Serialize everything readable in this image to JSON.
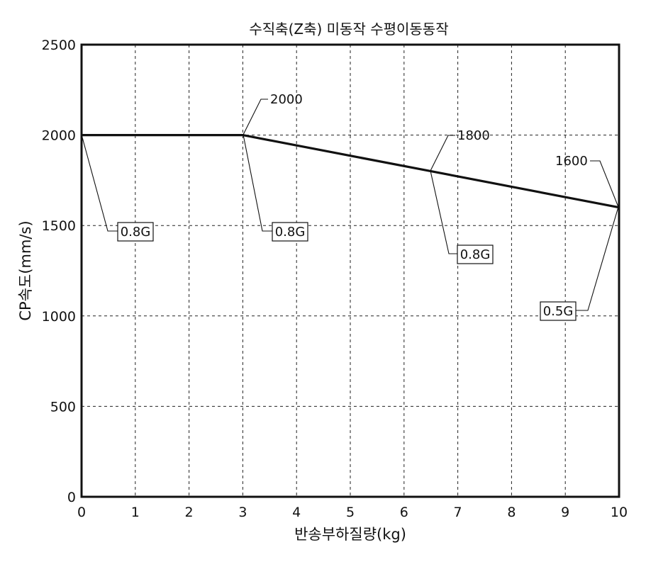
{
  "chart_data": {
    "type": "line",
    "title": "수직축(Z축) 미동작 수평이동동작",
    "xlabel": "반송부하질량(kg)",
    "ylabel": "CP속도(mm/s)",
    "xlim": [
      0,
      10
    ],
    "ylim": [
      0,
      2500
    ],
    "xticks": [
      "0",
      "1",
      "2",
      "3",
      "4",
      "5",
      "6",
      "7",
      "8",
      "9",
      "10"
    ],
    "yticks": [
      "0",
      "500",
      "1000",
      "1500",
      "2000",
      "2500"
    ],
    "grid": true,
    "series": [
      {
        "x": [
          0,
          3,
          6.5,
          10
        ],
        "y": [
          2000,
          2000,
          1800,
          1600
        ]
      }
    ],
    "annotations": {
      "values": [
        "2000",
        "1800",
        "1600"
      ],
      "accel": [
        "0.8G",
        "0.8G",
        "0.8G",
        "0.5G"
      ]
    }
  }
}
